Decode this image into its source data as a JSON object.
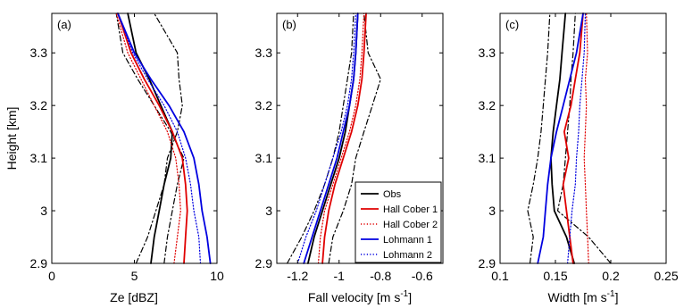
{
  "figure": {
    "ylabel": "Height [km]",
    "legend": {
      "placement": "bottom-right of panel (b)",
      "entries": [
        {
          "name": "Obs",
          "color": "#000000",
          "style": "solid"
        },
        {
          "name": "Hall Cober 1",
          "color": "#e00000",
          "style": "solid"
        },
        {
          "name": "Hall Cober 2",
          "color": "#e00000",
          "style": "dotted"
        },
        {
          "name": "Lohmann 1",
          "color": "#0000e0",
          "style": "solid"
        },
        {
          "name": "Lohmann 2",
          "color": "#0000e0",
          "style": "dotted"
        }
      ]
    }
  },
  "chart_data": [
    {
      "type": "line",
      "panel_label": "(a)",
      "xlabel": "Ze [dBZ]",
      "ylabel": "Height [km]",
      "xlim": [
        0,
        10
      ],
      "ylim": [
        2.9,
        3.375
      ],
      "xticks": [
        "0",
        "5",
        "10"
      ],
      "yticks": [
        "2.9",
        "3",
        "3.1",
        "3.2",
        "3.3"
      ],
      "xtick_values": [
        0,
        5,
        10
      ],
      "ytick_values": [
        2.9,
        3.0,
        3.1,
        3.2,
        3.3
      ],
      "grid": false,
      "series": [
        {
          "name": "Obs",
          "color": "#000000",
          "style": "solid",
          "x": [
            6.0,
            6.2,
            6.5,
            6.8,
            7.2,
            7.3,
            6.6,
            5.9,
            5.1,
            4.6
          ],
          "y": [
            2.9,
            2.95,
            3.0,
            3.05,
            3.1,
            3.15,
            3.2,
            3.25,
            3.3,
            3.375
          ]
        },
        {
          "name": "Obs",
          "color": "#000000",
          "style": "dashdot",
          "x": [
            5.1,
            5.8,
            6.3,
            6.8,
            7.0,
            7.6,
            7.9,
            7.7,
            7.6,
            6.2
          ],
          "y": [
            2.9,
            2.95,
            3.0,
            3.05,
            3.1,
            3.15,
            3.2,
            3.25,
            3.3,
            3.375
          ]
        },
        {
          "name": "Obs",
          "color": "#000000",
          "style": "dashdot",
          "x": [
            6.8,
            7.0,
            7.3,
            7.6,
            8.0,
            7.2,
            6.2,
            5.2,
            4.3,
            3.9
          ],
          "y": [
            2.9,
            2.95,
            3.0,
            3.05,
            3.1,
            3.15,
            3.2,
            3.25,
            3.3,
            3.375
          ]
        },
        {
          "name": "Hall Cober 1",
          "color": "#e00000",
          "style": "solid",
          "x": [
            8.0,
            8.1,
            8.2,
            8.1,
            7.9,
            7.3,
            6.5,
            5.6,
            4.8,
            4.0
          ],
          "y": [
            2.9,
            2.95,
            3.0,
            3.05,
            3.1,
            3.15,
            3.2,
            3.25,
            3.3,
            3.375
          ]
        },
        {
          "name": "Hall Cober 2",
          "color": "#e00000",
          "style": "dotted",
          "x": [
            7.4,
            7.6,
            7.8,
            7.7,
            7.5,
            7.0,
            6.2,
            5.4,
            4.6,
            3.9
          ],
          "y": [
            2.9,
            2.95,
            3.0,
            3.05,
            3.1,
            3.15,
            3.2,
            3.25,
            3.3,
            3.375
          ]
        },
        {
          "name": "Lohmann 1",
          "color": "#0000e0",
          "style": "solid",
          "x": [
            9.6,
            9.4,
            9.1,
            8.9,
            8.6,
            8.0,
            7.1,
            6.0,
            5.0,
            4.0
          ],
          "y": [
            2.9,
            2.95,
            3.0,
            3.05,
            3.1,
            3.15,
            3.2,
            3.25,
            3.3,
            3.375
          ]
        },
        {
          "name": "Lohmann 2",
          "color": "#0000e0",
          "style": "dotted",
          "x": [
            9.0,
            8.9,
            8.6,
            8.4,
            8.1,
            7.6,
            6.8,
            5.8,
            4.9,
            4.0
          ],
          "y": [
            2.9,
            2.95,
            3.0,
            3.05,
            3.1,
            3.15,
            3.2,
            3.25,
            3.3,
            3.375
          ]
        }
      ]
    },
    {
      "type": "line",
      "panel_label": "(b)",
      "xlabel": "Fall velocity [m s",
      "xlabel_sup": "-1",
      "xlabel_suffix": "]",
      "ylabel": "Height [km]",
      "xlim": [
        -1.3,
        -0.5
      ],
      "ylim": [
        2.9,
        3.375
      ],
      "xticks": [
        "-1.2",
        "-1",
        "-0.8",
        "-0.6"
      ],
      "yticks": [
        "2.9",
        "3",
        "3.1",
        "3.2",
        "3.3"
      ],
      "xtick_values": [
        -1.2,
        -1.0,
        -0.8,
        -0.6
      ],
      "ytick_values": [
        2.9,
        3.0,
        3.1,
        3.2,
        3.3
      ],
      "grid": false,
      "series": [
        {
          "name": "Obs",
          "color": "#000000",
          "style": "solid",
          "x": [
            -1.15,
            -1.12,
            -1.08,
            -1.04,
            -1.0,
            -0.97,
            -0.95,
            -0.93,
            -0.92,
            -0.91
          ],
          "y": [
            2.9,
            2.95,
            3.0,
            3.05,
            3.1,
            3.15,
            3.2,
            3.25,
            3.3,
            3.375
          ]
        },
        {
          "name": "Obs",
          "color": "#000000",
          "style": "dashdot",
          "x": [
            -1.25,
            -1.18,
            -1.12,
            -1.07,
            -1.03,
            -1.0,
            -0.98,
            -0.96,
            -0.94,
            -0.93
          ],
          "y": [
            2.9,
            2.95,
            3.0,
            3.05,
            3.1,
            3.15,
            3.2,
            3.25,
            3.3,
            3.375
          ]
        },
        {
          "name": "Obs",
          "color": "#000000",
          "style": "dashdot",
          "x": [
            -1.05,
            -1.03,
            -0.98,
            -0.94,
            -0.92,
            -0.88,
            -0.84,
            -0.8,
            -0.86,
            -0.88
          ],
          "y": [
            2.9,
            2.95,
            3.0,
            3.05,
            3.1,
            3.15,
            3.2,
            3.25,
            3.3,
            3.375
          ]
        },
        {
          "name": "Hall Cober 1",
          "color": "#e00000",
          "style": "solid",
          "x": [
            -1.08,
            -1.07,
            -1.05,
            -1.02,
            -0.98,
            -0.94,
            -0.91,
            -0.89,
            -0.88,
            -0.87
          ],
          "y": [
            2.9,
            2.95,
            3.0,
            3.05,
            3.1,
            3.15,
            3.2,
            3.25,
            3.3,
            3.375
          ]
        },
        {
          "name": "Hall Cober 2",
          "color": "#e00000",
          "style": "dotted",
          "x": [
            -1.1,
            -1.09,
            -1.07,
            -1.03,
            -0.99,
            -0.95,
            -0.92,
            -0.9,
            -0.89,
            -0.88
          ],
          "y": [
            2.9,
            2.95,
            3.0,
            3.05,
            3.1,
            3.15,
            3.2,
            3.25,
            3.3,
            3.375
          ]
        },
        {
          "name": "Lohmann 1",
          "color": "#0000e0",
          "style": "solid",
          "x": [
            -1.17,
            -1.13,
            -1.09,
            -1.05,
            -1.01,
            -0.98,
            -0.95,
            -0.93,
            -0.92,
            -0.91
          ],
          "y": [
            2.9,
            2.95,
            3.0,
            3.05,
            3.1,
            3.15,
            3.2,
            3.25,
            3.3,
            3.375
          ]
        },
        {
          "name": "Lohmann 2",
          "color": "#0000e0",
          "style": "dotted",
          "x": [
            -1.2,
            -1.16,
            -1.11,
            -1.07,
            -1.03,
            -0.99,
            -0.96,
            -0.94,
            -0.93,
            -0.92
          ],
          "y": [
            2.9,
            2.95,
            3.0,
            3.05,
            3.1,
            3.15,
            3.2,
            3.25,
            3.3,
            3.375
          ]
        }
      ]
    },
    {
      "type": "line",
      "panel_label": "(c)",
      "xlabel": "Width [m s",
      "xlabel_sup": "-1",
      "xlabel_suffix": "]",
      "ylabel": "Height [km]",
      "xlim": [
        0.1,
        0.25
      ],
      "ylim": [
        2.9,
        3.375
      ],
      "xticks": [
        "0.1",
        "0.15",
        "0.2",
        "0.25"
      ],
      "yticks": [
        "2.9",
        "3",
        "3.1",
        "3.2",
        "3.3"
      ],
      "xtick_values": [
        0.1,
        0.15,
        0.2,
        0.25
      ],
      "ytick_values": [
        2.9,
        3.0,
        3.1,
        3.2,
        3.3
      ],
      "grid": false,
      "series": [
        {
          "name": "Obs",
          "color": "#000000",
          "style": "solid",
          "x": [
            0.167,
            0.16,
            0.149,
            0.147,
            0.146,
            0.148,
            0.151,
            0.154,
            0.156,
            0.159
          ],
          "y": [
            2.9,
            2.95,
            3.0,
            3.05,
            3.1,
            3.15,
            3.2,
            3.25,
            3.3,
            3.375
          ]
        },
        {
          "name": "Obs",
          "color": "#000000",
          "style": "dashdot",
          "x": [
            0.127,
            0.13,
            0.125,
            0.13,
            0.134,
            0.137,
            0.139,
            0.141,
            0.143,
            0.145
          ],
          "y": [
            2.9,
            2.95,
            3.0,
            3.05,
            3.1,
            3.15,
            3.2,
            3.25,
            3.3,
            3.375
          ]
        },
        {
          "name": "Obs",
          "color": "#000000",
          "style": "dashdot",
          "x": [
            0.2,
            0.18,
            0.152,
            0.157,
            0.159,
            0.161,
            0.163,
            0.164,
            0.166,
            0.168
          ],
          "y": [
            2.9,
            2.95,
            3.0,
            3.05,
            3.1,
            3.15,
            3.2,
            3.25,
            3.3,
            3.375
          ]
        },
        {
          "name": "Hall Cober 1",
          "color": "#e00000",
          "style": "solid",
          "x": [
            0.166,
            0.163,
            0.16,
            0.157,
            0.162,
            0.158,
            0.164,
            0.168,
            0.172,
            0.175
          ],
          "y": [
            2.9,
            2.95,
            3.0,
            3.05,
            3.1,
            3.15,
            3.2,
            3.25,
            3.3,
            3.375
          ]
        },
        {
          "name": "Hall Cober 2",
          "color": "#e00000",
          "style": "dotted",
          "x": [
            0.18,
            0.179,
            0.178,
            0.177,
            0.176,
            0.177,
            0.178,
            0.177,
            0.179,
            0.178
          ],
          "y": [
            2.9,
            2.95,
            3.0,
            3.05,
            3.1,
            3.15,
            3.2,
            3.25,
            3.3,
            3.375
          ]
        },
        {
          "name": "Lohmann 1",
          "color": "#0000e0",
          "style": "solid",
          "x": [
            0.134,
            0.139,
            0.141,
            0.143,
            0.146,
            0.151,
            0.157,
            0.163,
            0.169,
            0.175
          ],
          "y": [
            2.9,
            2.95,
            3.0,
            3.05,
            3.1,
            3.15,
            3.2,
            3.25,
            3.3,
            3.375
          ]
        },
        {
          "name": "Lohmann 2",
          "color": "#0000e0",
          "style": "dotted",
          "x": [
            0.161,
            0.163,
            0.165,
            0.168,
            0.169,
            0.171,
            0.172,
            0.174,
            0.176,
            0.177
          ],
          "y": [
            2.9,
            2.95,
            3.0,
            3.05,
            3.1,
            3.15,
            3.2,
            3.25,
            3.3,
            3.375
          ]
        }
      ]
    }
  ]
}
